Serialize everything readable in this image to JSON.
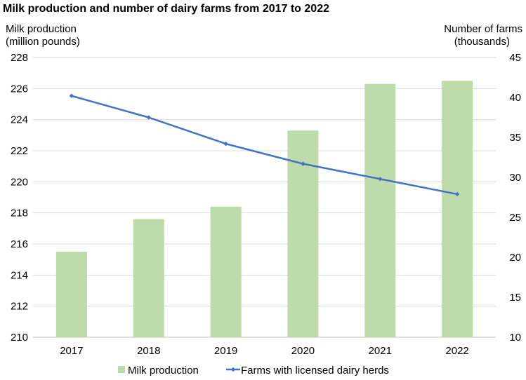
{
  "chart_data": {
    "type": "bar+line",
    "title": "Milk production and number of dairy farms from 2017 to 2022",
    "categories": [
      "2017",
      "2018",
      "2019",
      "2020",
      "2021",
      "2022"
    ],
    "y_left": {
      "label_lines": [
        "Milk production",
        "(million pounds)"
      ],
      "min": 210,
      "max": 228,
      "step": 2,
      "ticks": [
        "210",
        "212",
        "214",
        "216",
        "218",
        "220",
        "222",
        "224",
        "226",
        "228"
      ]
    },
    "y_right": {
      "label_lines": [
        "Number of farms",
        "(thousands)"
      ],
      "min": 10,
      "max": 45,
      "step": 5,
      "ticks": [
        "10",
        "15",
        "20",
        "25",
        "30",
        "35",
        "40",
        "45"
      ]
    },
    "series": [
      {
        "name": "Milk production",
        "type": "bar",
        "axis": "left",
        "color": "#bddcaa",
        "values": [
          215.5,
          217.6,
          218.4,
          223.3,
          226.3,
          226.5
        ]
      },
      {
        "name": "Farms with licensed dairy herds",
        "type": "line",
        "axis": "right",
        "color": "#4472c4",
        "values": [
          40.2,
          37.5,
          34.2,
          31.7,
          29.8,
          27.9
        ]
      }
    ],
    "grid": true,
    "legend_position": "bottom"
  }
}
